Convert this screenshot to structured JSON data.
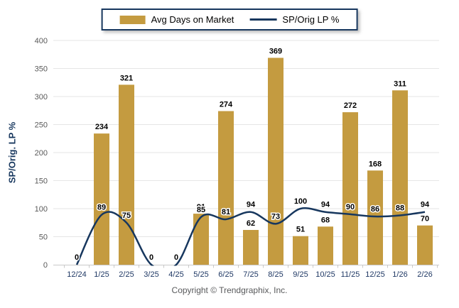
{
  "legend": {
    "bar_label": "Avg Days on Market",
    "line_label": "SP/Orig LP %"
  },
  "footer": {
    "copyright": "Copyright © Trendgraphix, Inc."
  },
  "colors": {
    "bar": "#C49B40",
    "line": "#17375E",
    "grid": "#E6E6E6",
    "axis": "#C9C9C9",
    "x_tick_label": "#1F3864",
    "y_tick_label": "#595959",
    "data_label": "#000000"
  },
  "chart_data": {
    "type": "bar",
    "categories": [
      "12/24",
      "1/25",
      "2/25",
      "3/25",
      "4/25",
      "5/25",
      "6/25",
      "7/25",
      "8/25",
      "9/25",
      "10/25",
      "11/25",
      "12/25",
      "1/26",
      "2/26"
    ],
    "series": [
      {
        "name": "Avg Days on Market",
        "type": "bar",
        "values": [
          0,
          234,
          321,
          0,
          0,
          91,
          274,
          62,
          369,
          51,
          68,
          272,
          168,
          311,
          70
        ]
      },
      {
        "name": "SP/Orig LP %",
        "type": "line",
        "values": [
          0,
          89,
          75,
          0,
          0,
          85,
          81,
          94,
          73,
          100,
          94,
          90,
          86,
          88,
          94
        ]
      }
    ],
    "title": "",
    "xlabel": "",
    "ylabel": "SP/Orig. LP %",
    "ylim": [
      0,
      400
    ],
    "ytick_step": 50,
    "grid": true,
    "legend_position": "top",
    "notes": "bar labels hidden for zero values; line labels shown for all points including 0"
  }
}
